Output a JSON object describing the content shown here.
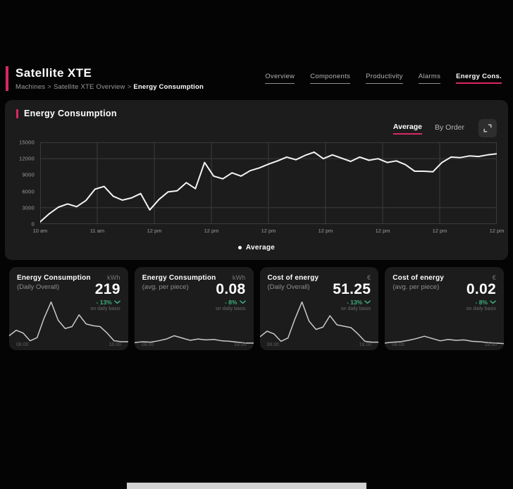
{
  "header": {
    "title": "Satellite XTE",
    "breadcrumb": [
      "Machines",
      "Satellite XTE Overview",
      "Energy Consumption"
    ],
    "breadcrumb_separator": ">"
  },
  "nav": {
    "items": [
      {
        "label": "Overview",
        "active": false
      },
      {
        "label": "Components",
        "active": false
      },
      {
        "label": "Productivity",
        "active": false
      },
      {
        "label": "Alarms",
        "active": false
      },
      {
        "label": "Energy Cons.",
        "active": true
      }
    ]
  },
  "panel": {
    "title": "Energy Consumption",
    "view_tabs": [
      {
        "label": "Average",
        "active": true
      },
      {
        "label": "By Order",
        "active": false
      }
    ],
    "expand_icon": "expand-icon",
    "legend": {
      "marker": "dot",
      "label": "Average"
    }
  },
  "chart_data": [
    {
      "id": "main-energy-chart",
      "type": "line",
      "title": "Energy Consumption",
      "xlabel": "",
      "ylabel": "",
      "ylim": [
        0,
        15000
      ],
      "y_ticks": [
        0,
        3000,
        6000,
        9000,
        12000,
        15000
      ],
      "hgrid_values": [
        3000,
        12000
      ],
      "x_ticks": [
        "10 am",
        "11 am",
        "12 pm",
        "12 pm",
        "12 pm",
        "12 pm",
        "12 pm",
        "12 pm",
        "12 pm"
      ],
      "grid": true,
      "legend_position": "bottom",
      "series": [
        {
          "name": "Average",
          "values": [
            400,
            1900,
            3100,
            3700,
            3200,
            4300,
            6400,
            6900,
            5100,
            4400,
            4800,
            5600,
            2600,
            4500,
            5900,
            6100,
            7600,
            6500,
            11300,
            8800,
            8300,
            9400,
            8800,
            9800,
            10300,
            11000,
            11600,
            12300,
            11800,
            12600,
            13200,
            12000,
            12700,
            12100,
            11500,
            12300,
            11700,
            12000,
            11300,
            11600,
            10900,
            9700,
            9700,
            9600,
            11300,
            12300,
            12200,
            12500,
            12400,
            12700,
            12900
          ]
        }
      ]
    },
    {
      "id": "card-sparkline-1",
      "type": "line",
      "x_range": [
        "08.00",
        "18.00"
      ],
      "ylim": [
        0,
        10
      ],
      "values": [
        2.6,
        3.8,
        3.2,
        1.5,
        2.2,
        6.5,
        10,
        6.0,
        4.2,
        4.6,
        7.2,
        5.2,
        4.8,
        4.6,
        3.2,
        1.5,
        1.3,
        1.3
      ]
    },
    {
      "id": "card-sparkline-2",
      "type": "line",
      "x_range": [
        "08.00",
        "18.00"
      ],
      "ylim": [
        0,
        10
      ],
      "values": [
        1.1,
        1.3,
        1.2,
        1.5,
        1.9,
        2.6,
        2.1,
        1.6,
        1.9,
        1.7,
        1.8,
        1.5,
        1.4,
        1.2,
        1.0,
        1.0
      ]
    },
    {
      "id": "card-sparkline-3",
      "type": "line",
      "x_range": [
        "08.00",
        "18.00"
      ],
      "ylim": [
        0,
        10
      ],
      "values": [
        2.4,
        3.6,
        3.0,
        1.4,
        2.1,
        6.3,
        10,
        5.8,
        4.0,
        4.5,
        7.0,
        5.0,
        4.7,
        4.4,
        3.0,
        1.4,
        1.2,
        1.2
      ]
    },
    {
      "id": "card-sparkline-4",
      "type": "line",
      "x_range": [
        "08.00",
        "18.00"
      ],
      "ylim": [
        0,
        10
      ],
      "values": [
        1.0,
        1.2,
        1.3,
        1.6,
        2.0,
        2.5,
        2.0,
        1.5,
        1.8,
        1.6,
        1.7,
        1.4,
        1.3,
        1.1,
        1.0,
        0.9
      ]
    }
  ],
  "cards": [
    {
      "title": "Energy Consumption",
      "subtitle": "(Daily Overall)",
      "unit": "kWh",
      "value": "219",
      "delta": "- 13%",
      "delta_direction": "down",
      "delta_note": "on daily basis",
      "time_start": "08.00",
      "time_end": "18.00"
    },
    {
      "title": "Energy Consumption",
      "subtitle": "(avg. per piece)",
      "unit": "kWh",
      "value": "0.08",
      "delta": "- 8%",
      "delta_direction": "down",
      "delta_note": "on daily basis",
      "time_start": "08.00",
      "time_end": "18.00"
    },
    {
      "title": "Cost of energy",
      "subtitle": "(Daily Overall)",
      "unit": "€",
      "value": "51.25",
      "delta": "- 13%",
      "delta_direction": "down",
      "delta_note": "on daily basis",
      "time_start": "08.00",
      "time_end": "18.00"
    },
    {
      "title": "Cost of energy",
      "subtitle": "(avg. per piece)",
      "unit": "€",
      "value": "0.02",
      "delta": "- 8%",
      "delta_direction": "down",
      "delta_note": "on daily basis",
      "time_start": "08.00",
      "time_end": "18.00"
    }
  ],
  "colors": {
    "accent": "#d92764",
    "positive_green": "#3fae7d",
    "panel_bg": "#1c1c1c",
    "plot_bg": "#141414",
    "grid": "#3b3b3b",
    "main_line": "#f4f4f4",
    "spark_line": "#c9c9c9",
    "page_bg": "#040404"
  }
}
